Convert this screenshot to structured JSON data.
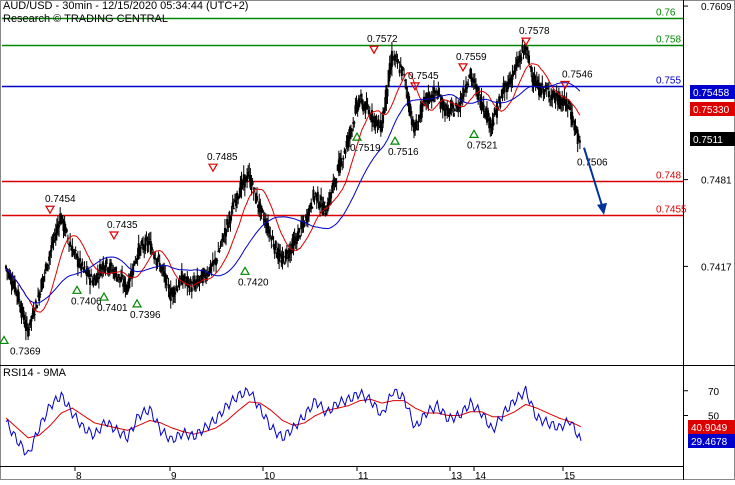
{
  "header": {
    "title": "AUD/USD - 30min - 12/15/2020 05:34:44 (UTC+2)",
    "source": "Research © TRADING CENTRAL"
  },
  "rsi_header": {
    "label": "RSI14 - 9MA"
  },
  "colors": {
    "background": "#ffffff",
    "candles": "#000000",
    "ma_fast": "#dd0000",
    "ma_slow": "#0000cc",
    "resistance": "#008800",
    "pivot": "#0000cc",
    "support": "#dd0000",
    "arrow": "#003399",
    "price_box": "#000000",
    "triangle_up": "#008800",
    "triangle_down": "#dd0000"
  },
  "chart_data": [
    {
      "type": "candlestick",
      "title": "AUD/USD - 30min - 12/15/2020 05:34:44 (UTC+2)",
      "ylim": [
        0.7345,
        0.7612
      ],
      "y_ticks": [
        "0.7609",
        "0.7481",
        "0.7417"
      ],
      "x_ticks": [
        "8",
        "9",
        "10",
        "11",
        "13",
        "14",
        "15"
      ],
      "current_price": "0.7511",
      "indicators": [
        {
          "name": "fast moving average",
          "last_value": "0.75330",
          "color": "#dd0000"
        },
        {
          "name": "slow moving average",
          "last_value": "0.75458",
          "color": "#0000cc"
        }
      ],
      "levels": [
        {
          "label": "0.76",
          "value": 0.76,
          "color": "#008800"
        },
        {
          "label": "0.758",
          "value": 0.758,
          "color": "#008800"
        },
        {
          "label": "0.755",
          "value": 0.755,
          "color": "#0000cc"
        },
        {
          "label": "0.748",
          "value": 0.748,
          "color": "#dd0000"
        },
        {
          "label": "0.7455",
          "value": 0.7455,
          "color": "#dd0000"
        }
      ],
      "annotations": [
        {
          "label": "0.7369",
          "value": 0.7369,
          "kind": "low"
        },
        {
          "label": "0.7454",
          "value": 0.7454,
          "kind": "high"
        },
        {
          "label": "0.7406",
          "value": 0.7406,
          "kind": "low"
        },
        {
          "label": "0.7401",
          "value": 0.7401,
          "kind": "low"
        },
        {
          "label": "0.7435",
          "value": 0.7435,
          "kind": "high"
        },
        {
          "label": "0.7396",
          "value": 0.7396,
          "kind": "low"
        },
        {
          "label": "0.7485",
          "value": 0.7485,
          "kind": "high"
        },
        {
          "label": "0.7420",
          "value": 0.742,
          "kind": "low"
        },
        {
          "label": "0.7519",
          "value": 0.7519,
          "kind": "low"
        },
        {
          "label": "0.7572",
          "value": 0.7572,
          "kind": "high"
        },
        {
          "label": "0.7516",
          "value": 0.7516,
          "kind": "low"
        },
        {
          "label": "0.7545",
          "value": 0.7545,
          "kind": "high"
        },
        {
          "label": "0.7559",
          "value": 0.7559,
          "kind": "high"
        },
        {
          "label": "0.7521",
          "value": 0.7521,
          "kind": "low"
        },
        {
          "label": "0.7578",
          "value": 0.7578,
          "kind": "high"
        },
        {
          "label": "0.7546",
          "value": 0.7546,
          "kind": "high"
        },
        {
          "label": "0.7506",
          "value": 0.7506,
          "kind": "target"
        }
      ],
      "close_path": [
        0.7417,
        0.74,
        0.7369,
        0.7395,
        0.7425,
        0.7454,
        0.743,
        0.7415,
        0.7406,
        0.742,
        0.7412,
        0.7401,
        0.7428,
        0.7435,
        0.7418,
        0.7396,
        0.7408,
        0.7402,
        0.741,
        0.742,
        0.7445,
        0.747,
        0.7485,
        0.746,
        0.744,
        0.742,
        0.7432,
        0.7448,
        0.747,
        0.7458,
        0.7485,
        0.751,
        0.754,
        0.753,
        0.7519,
        0.7572,
        0.756,
        0.7516,
        0.754,
        0.7545,
        0.753,
        0.7535,
        0.7559,
        0.754,
        0.7521,
        0.7545,
        0.756,
        0.7578,
        0.755,
        0.7546,
        0.754,
        0.7535,
        0.7506
      ],
      "forecast_arrow": {
        "from": 0.7506,
        "to": 0.7455
      }
    },
    {
      "type": "line",
      "title": "RSI14 - 9MA",
      "ylim": [
        10,
        90
      ],
      "y_ticks": [
        "70",
        "50"
      ],
      "series": [
        {
          "name": "RSI14",
          "last_value": "29.4678",
          "color": "#0000cc",
          "values": [
            45,
            30,
            18,
            40,
            58,
            66,
            52,
            40,
            34,
            45,
            38,
            32,
            50,
            55,
            38,
            30,
            36,
            33,
            40,
            47,
            58,
            66,
            70,
            55,
            40,
            32,
            40,
            50,
            62,
            52,
            60,
            63,
            68,
            62,
            50,
            70,
            64,
            40,
            52,
            58,
            47,
            50,
            60,
            52,
            38,
            52,
            62,
            70,
            48,
            44,
            40,
            46,
            29.5
          ]
        },
        {
          "name": "9MA",
          "last_value": "40.9049",
          "color": "#dd0000",
          "values": [
            48,
            40,
            32,
            34,
            42,
            52,
            56,
            50,
            44,
            42,
            40,
            38,
            42,
            46,
            44,
            40,
            37,
            35,
            37,
            40,
            46,
            54,
            61,
            60,
            54,
            46,
            42,
            44,
            50,
            54,
            56,
            58,
            62,
            63,
            60,
            62,
            62,
            56,
            52,
            52,
            50,
            50,
            53,
            53,
            49,
            49,
            53,
            59,
            56,
            52,
            48,
            45,
            40.9
          ]
        }
      ]
    }
  ]
}
